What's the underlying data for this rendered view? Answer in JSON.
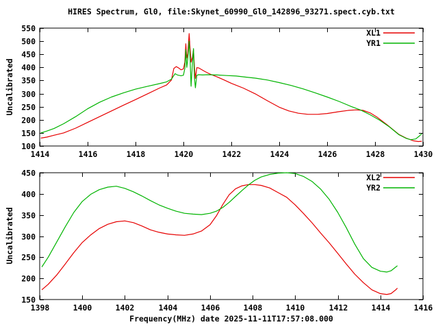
{
  "title": "HIRES Spectrum, Gl0, file:Skynet_60990_Gl0_142896_93271.spect.cyb.txt",
  "colors": {
    "background": "#ffffff",
    "axis": "#000000",
    "xl": "#e60000",
    "yr": "#00b400"
  },
  "chart_data": [
    {
      "type": "line",
      "xlabel": "",
      "ylabel": "Uncalibrated",
      "xlim": [
        1414,
        1430
      ],
      "ylim": [
        100,
        550
      ],
      "xticks": [
        1414,
        1416,
        1418,
        1420,
        1422,
        1424,
        1426,
        1428,
        1430
      ],
      "yticks": [
        100,
        150,
        200,
        250,
        300,
        350,
        400,
        450,
        500,
        550
      ],
      "grid": false,
      "legend_position": "top-right",
      "series": [
        {
          "name": "XL1",
          "color_key": "xl",
          "points": [
            [
              1414.05,
              130
            ],
            [
              1414.3,
              134
            ],
            [
              1414.6,
              141
            ],
            [
              1415,
              150
            ],
            [
              1415.5,
              168
            ],
            [
              1416,
              190
            ],
            [
              1416.5,
              212
            ],
            [
              1417,
              234
            ],
            [
              1417.5,
              256
            ],
            [
              1418,
              277
            ],
            [
              1418.5,
              299
            ],
            [
              1419,
              321
            ],
            [
              1419.3,
              333
            ],
            [
              1419.5,
              352
            ],
            [
              1419.6,
              396
            ],
            [
              1419.7,
              403
            ],
            [
              1419.8,
              398
            ],
            [
              1419.9,
              391
            ],
            [
              1420,
              394
            ],
            [
              1420.06,
              420
            ],
            [
              1420.1,
              490
            ],
            [
              1420.14,
              436
            ],
            [
              1420.18,
              452
            ],
            [
              1420.24,
              529
            ],
            [
              1420.28,
              470
            ],
            [
              1420.32,
              420
            ],
            [
              1420.38,
              440
            ],
            [
              1420.42,
              468
            ],
            [
              1420.46,
              400
            ],
            [
              1420.5,
              358
            ],
            [
              1420.56,
              399
            ],
            [
              1420.64,
              398
            ],
            [
              1420.75,
              392
            ],
            [
              1420.9,
              384
            ],
            [
              1421.1,
              375
            ],
            [
              1421.4,
              364
            ],
            [
              1421.7,
              352
            ],
            [
              1422,
              339
            ],
            [
              1422.5,
              321
            ],
            [
              1423,
              299
            ],
            [
              1423.5,
              273
            ],
            [
              1424,
              248
            ],
            [
              1424.4,
              234
            ],
            [
              1424.8,
              225
            ],
            [
              1425.2,
              221
            ],
            [
              1425.6,
              221
            ],
            [
              1426,
              224
            ],
            [
              1426.5,
              231
            ],
            [
              1426.9,
              236
            ],
            [
              1427.2,
              238
            ],
            [
              1427.5,
              236
            ],
            [
              1427.8,
              226
            ],
            [
              1428.1,
              209
            ],
            [
              1428.5,
              181
            ],
            [
              1429,
              144
            ],
            [
              1429.3,
              130
            ],
            [
              1429.6,
              120
            ],
            [
              1429.8,
              117
            ],
            [
              1429.95,
              118
            ]
          ]
        },
        {
          "name": "YR1",
          "color_key": "yr",
          "points": [
            [
              1414.05,
              150
            ],
            [
              1414.3,
              157
            ],
            [
              1414.6,
              167
            ],
            [
              1415,
              185
            ],
            [
              1415.5,
              212
            ],
            [
              1416,
              242
            ],
            [
              1416.5,
              267
            ],
            [
              1417,
              287
            ],
            [
              1417.5,
              303
            ],
            [
              1418,
              317
            ],
            [
              1418.5,
              328
            ],
            [
              1419,
              338
            ],
            [
              1419.3,
              345
            ],
            [
              1419.5,
              355
            ],
            [
              1419.65,
              376
            ],
            [
              1419.75,
              371
            ],
            [
              1419.9,
              368
            ],
            [
              1420,
              370
            ],
            [
              1420.06,
              396
            ],
            [
              1420.1,
              468
            ],
            [
              1420.14,
              400
            ],
            [
              1420.18,
              430
            ],
            [
              1420.24,
              500
            ],
            [
              1420.28,
              430
            ],
            [
              1420.32,
              328
            ],
            [
              1420.38,
              420
            ],
            [
              1420.42,
              472
            ],
            [
              1420.46,
              360
            ],
            [
              1420.5,
              322
            ],
            [
              1420.56,
              370
            ],
            [
              1420.64,
              372
            ],
            [
              1420.8,
              371
            ],
            [
              1421,
              372
            ],
            [
              1421.4,
              371
            ],
            [
              1421.8,
              369
            ],
            [
              1422.2,
              367
            ],
            [
              1422.6,
              363
            ],
            [
              1423,
              359
            ],
            [
              1423.5,
              352
            ],
            [
              1424,
              342
            ],
            [
              1424.5,
              331
            ],
            [
              1425,
              318
            ],
            [
              1425.5,
              303
            ],
            [
              1426,
              287
            ],
            [
              1426.5,
              270
            ],
            [
              1427,
              251
            ],
            [
              1427.4,
              237
            ],
            [
              1427.8,
              219
            ],
            [
              1428.2,
              198
            ],
            [
              1428.6,
              173
            ],
            [
              1429,
              143
            ],
            [
              1429.3,
              129
            ],
            [
              1429.5,
              124
            ],
            [
              1429.7,
              127
            ],
            [
              1429.85,
              138
            ],
            [
              1429.95,
              147
            ]
          ]
        }
      ]
    },
    {
      "type": "line",
      "xlabel": "Frequency(MHz) date 2025-11-11T17:57:08.000",
      "ylabel": "Uncalibrated",
      "xlim": [
        1398,
        1416
      ],
      "ylim": [
        150,
        450
      ],
      "xticks": [
        1398,
        1400,
        1402,
        1404,
        1406,
        1408,
        1410,
        1412,
        1414,
        1416
      ],
      "yticks": [
        150,
        200,
        250,
        300,
        350,
        400,
        450
      ],
      "grid": false,
      "legend_position": "top-right",
      "series": [
        {
          "name": "XL2",
          "color_key": "xl",
          "points": [
            [
              1398.1,
              173
            ],
            [
              1398.4,
              186
            ],
            [
              1398.8,
              208
            ],
            [
              1399.2,
              234
            ],
            [
              1399.6,
              261
            ],
            [
              1400,
              285
            ],
            [
              1400.4,
              303
            ],
            [
              1400.8,
              318
            ],
            [
              1401.2,
              328
            ],
            [
              1401.6,
              334
            ],
            [
              1402,
              336
            ],
            [
              1402.4,
              332
            ],
            [
              1402.8,
              324
            ],
            [
              1403.2,
              315
            ],
            [
              1403.6,
              309
            ],
            [
              1404,
              305
            ],
            [
              1404.4,
              303
            ],
            [
              1404.8,
              302
            ],
            [
              1405.2,
              305
            ],
            [
              1405.6,
              312
            ],
            [
              1406,
              327
            ],
            [
              1406.3,
              348
            ],
            [
              1406.6,
              375
            ],
            [
              1406.9,
              398
            ],
            [
              1407.2,
              412
            ],
            [
              1407.5,
              419
            ],
            [
              1407.8,
              422
            ],
            [
              1408.1,
              422
            ],
            [
              1408.4,
              420
            ],
            [
              1408.8,
              414
            ],
            [
              1409.2,
              403
            ],
            [
              1409.6,
              392
            ],
            [
              1410,
              374
            ],
            [
              1410.4,
              353
            ],
            [
              1410.8,
              331
            ],
            [
              1411.2,
              307
            ],
            [
              1411.6,
              284
            ],
            [
              1412,
              259
            ],
            [
              1412.4,
              234
            ],
            [
              1412.8,
              210
            ],
            [
              1413.2,
              190
            ],
            [
              1413.6,
              173
            ],
            [
              1414,
              164
            ],
            [
              1414.3,
              162
            ],
            [
              1414.5,
              164
            ],
            [
              1414.7,
              172
            ],
            [
              1414.8,
              177
            ]
          ]
        },
        {
          "name": "YR2",
          "color_key": "yr",
          "points": [
            [
              1398.1,
              227
            ],
            [
              1398.4,
              250
            ],
            [
              1398.8,
              286
            ],
            [
              1399.2,
              322
            ],
            [
              1399.6,
              356
            ],
            [
              1400,
              382
            ],
            [
              1400.4,
              399
            ],
            [
              1400.8,
              410
            ],
            [
              1401.2,
              416
            ],
            [
              1401.6,
              418
            ],
            [
              1402,
              413
            ],
            [
              1402.4,
              405
            ],
            [
              1402.8,
              395
            ],
            [
              1403.2,
              384
            ],
            [
              1403.6,
              374
            ],
            [
              1404,
              366
            ],
            [
              1404.4,
              359
            ],
            [
              1404.8,
              354
            ],
            [
              1405.2,
              352
            ],
            [
              1405.6,
              351
            ],
            [
              1406,
              354
            ],
            [
              1406.3,
              359
            ],
            [
              1406.6,
              368
            ],
            [
              1406.9,
              380
            ],
            [
              1407.2,
              394
            ],
            [
              1407.5,
              408
            ],
            [
              1407.8,
              421
            ],
            [
              1408.1,
              432
            ],
            [
              1408.4,
              440
            ],
            [
              1408.8,
              446
            ],
            [
              1409.2,
              449
            ],
            [
              1409.6,
              450
            ],
            [
              1410,
              448
            ],
            [
              1410.4,
              441
            ],
            [
              1410.8,
              429
            ],
            [
              1411.2,
              411
            ],
            [
              1411.6,
              387
            ],
            [
              1412,
              356
            ],
            [
              1412.4,
              320
            ],
            [
              1412.8,
              281
            ],
            [
              1413.2,
              247
            ],
            [
              1413.6,
              226
            ],
            [
              1414,
              217
            ],
            [
              1414.3,
              215
            ],
            [
              1414.5,
              218
            ],
            [
              1414.7,
              226
            ],
            [
              1414.8,
              230
            ]
          ]
        }
      ]
    }
  ]
}
